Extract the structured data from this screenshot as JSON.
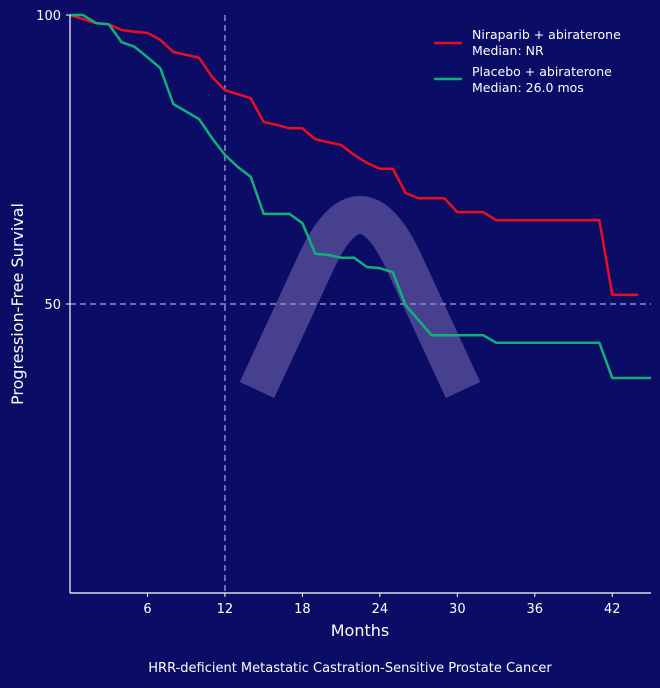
{
  "chart_data": {
    "type": "line",
    "title": "",
    "xlabel": "Months",
    "ylabel": "Progression-Free Survival",
    "caption": "HRR-deficient Metastatic Castration-Sensitive Prostate Cancer",
    "xlim": [
      0,
      45
    ],
    "ylim": [
      0,
      100
    ],
    "xticks": [
      6,
      12,
      18,
      24,
      30,
      36,
      42
    ],
    "yticks": [
      50,
      100
    ],
    "reference_lines": {
      "x": 12,
      "y": 50
    },
    "legend_position": "top-right",
    "grid": false,
    "series": [
      {
        "name": "Niraparib + abiraterone",
        "median_label": "Median: NR",
        "color": "#e8101e",
        "x": [
          0,
          1,
          2,
          3,
          4,
          5,
          6,
          7,
          8,
          9,
          10,
          11,
          12,
          13,
          14,
          15,
          16,
          17,
          18,
          19,
          20,
          21,
          22,
          23,
          24,
          25,
          26,
          27,
          28,
          29,
          30,
          31,
          32,
          33,
          41,
          42,
          44
        ],
        "y": [
          100,
          99.3,
          98.6,
          98.4,
          97.4,
          97.1,
          96.9,
          95.7,
          93.6,
          93.1,
          92.6,
          89.3,
          87.0,
          86.3,
          85.6,
          81.5,
          81.0,
          80.4,
          80.4,
          78.5,
          78.0,
          77.5,
          75.8,
          74.4,
          73.4,
          73.4,
          69.2,
          68.3,
          68.3,
          68.3,
          65.9,
          65.9,
          65.9,
          64.5,
          64.5,
          51.6,
          51.6
        ]
      },
      {
        "name": "Placebo + abiraterone",
        "median_label": "Median: 26.0 mos",
        "color": "#10b07a",
        "x": [
          0,
          1,
          2,
          3,
          4,
          5,
          6,
          7,
          8,
          9,
          10,
          11,
          12,
          13,
          14,
          15,
          16,
          17,
          18,
          19,
          20,
          21,
          22,
          23,
          24,
          25,
          26,
          27,
          28,
          29,
          30,
          31,
          32,
          33,
          41,
          42,
          45
        ],
        "y": [
          100,
          100,
          98.6,
          98.4,
          95.3,
          94.5,
          92.7,
          90.8,
          84.6,
          83.3,
          82.0,
          78.7,
          75.8,
          73.7,
          72.0,
          65.6,
          65.6,
          65.6,
          64.0,
          58.7,
          58.5,
          58.0,
          58.0,
          56.4,
          56.2,
          55.5,
          49.8,
          47.2,
          44.6,
          44.6,
          44.6,
          44.6,
          44.6,
          43.3,
          43.3,
          37.2,
          37.2
        ]
      }
    ]
  }
}
